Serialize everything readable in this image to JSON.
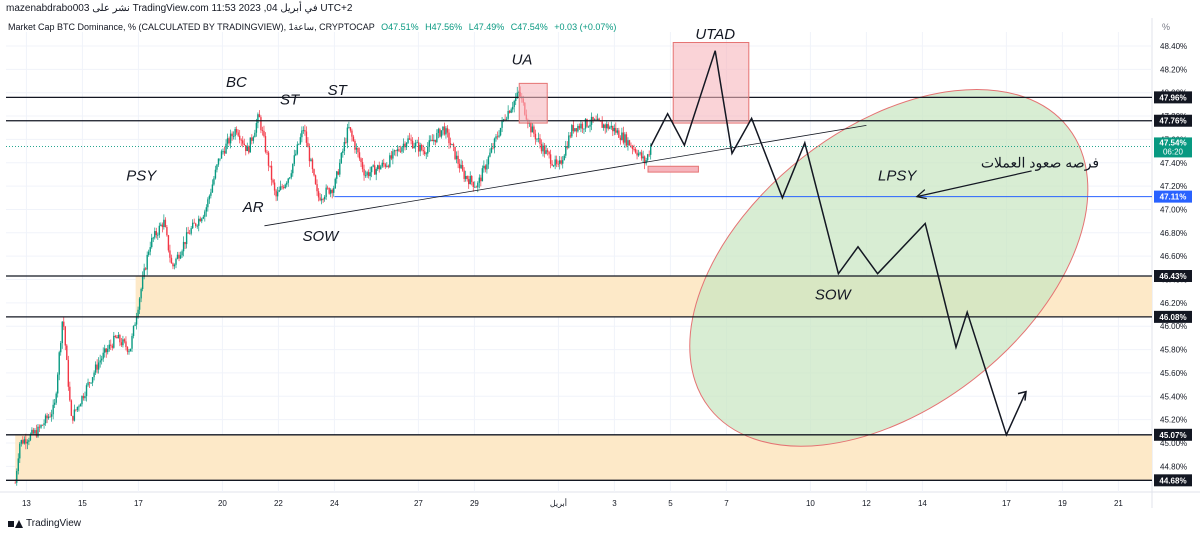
{
  "header": {
    "attribution": "mazenabdrabo003 نشر على TradingView.com في أبريل 04, 2023 11:53 UTC+2",
    "symbol_title": "Market Cap BTC Dominance, % (CALCULATED BY TRADINGVIEW), 1ساعة, CRYPTOCAP",
    "ohlc": {
      "open": "O47.51%",
      "high": "H47.56%",
      "low": "L47.49%",
      "close": "C47.54%",
      "change": "+0.03 (+0.07%)"
    },
    "unit": "%"
  },
  "footer": {
    "brand": "TradingView"
  },
  "colors": {
    "up": "#089981",
    "down": "#f23645",
    "zone": "#fde9c8",
    "ellipse_fill": "#c8e6c0",
    "ellipse_stroke": "#e57373",
    "box_fill": "#f6b5bd",
    "blue_line": "#2962ff"
  },
  "chart_data": {
    "type": "candlestick",
    "ylim": [
      44.6,
      48.5
    ],
    "y_ticks": [
      "48.40%",
      "48.20%",
      "48.00%",
      "47.80%",
      "47.60%",
      "47.40%",
      "47.20%",
      "47.00%",
      "46.80%",
      "46.60%",
      "46.40%",
      "46.20%",
      "46.00%",
      "45.80%",
      "45.60%",
      "45.40%",
      "45.20%",
      "45.00%",
      "44.80%"
    ],
    "x_ticks": [
      {
        "label": "13",
        "t": 0.4
      },
      {
        "label": "15",
        "t": 2.4
      },
      {
        "label": "17",
        "t": 4.4
      },
      {
        "label": "20",
        "t": 7.4
      },
      {
        "label": "22",
        "t": 9.4
      },
      {
        "label": "24",
        "t": 11.4
      },
      {
        "label": "27",
        "t": 14.4
      },
      {
        "label": "29",
        "t": 16.4
      },
      {
        "label": "أبريل",
        "t": 19.4
      },
      {
        "label": "3",
        "t": 21.4
      },
      {
        "label": "5",
        "t": 23.4
      },
      {
        "label": "7",
        "t": 25.4
      },
      {
        "label": "10",
        "t": 28.4
      },
      {
        "label": "12",
        "t": 30.4
      },
      {
        "label": "14",
        "t": 32.4
      },
      {
        "label": "17",
        "t": 35.4
      },
      {
        "label": "19",
        "t": 37.4
      },
      {
        "label": "21",
        "t": 39.4
      }
    ],
    "price_anchors": [
      [
        0.0,
        44.66
      ],
      [
        0.15,
        45.0
      ],
      [
        0.8,
        45.1
      ],
      [
        1.4,
        45.3
      ],
      [
        1.7,
        46.1
      ],
      [
        2.0,
        45.2
      ],
      [
        2.4,
        45.4
      ],
      [
        3.0,
        45.7
      ],
      [
        3.6,
        45.9
      ],
      [
        4.1,
        45.8
      ],
      [
        4.4,
        46.2
      ],
      [
        4.8,
        46.7
      ],
      [
        5.3,
        46.9
      ],
      [
        5.6,
        46.5
      ],
      [
        6.2,
        46.8
      ],
      [
        6.8,
        47.0
      ],
      [
        7.3,
        47.45
      ],
      [
        7.9,
        47.7
      ],
      [
        8.3,
        47.5
      ],
      [
        8.7,
        47.8
      ],
      [
        9.3,
        47.1
      ],
      [
        9.8,
        47.3
      ],
      [
        10.3,
        47.7
      ],
      [
        10.8,
        47.1
      ],
      [
        11.4,
        47.2
      ],
      [
        11.9,
        47.7
      ],
      [
        12.5,
        47.3
      ],
      [
        13.3,
        47.4
      ],
      [
        14.0,
        47.6
      ],
      [
        14.6,
        47.5
      ],
      [
        15.3,
        47.7
      ],
      [
        16.0,
        47.3
      ],
      [
        16.5,
        47.2
      ],
      [
        17.0,
        47.5
      ],
      [
        17.5,
        47.8
      ],
      [
        18.0,
        48.0
      ],
      [
        18.4,
        47.7
      ],
      [
        18.9,
        47.5
      ],
      [
        19.4,
        47.35
      ],
      [
        19.9,
        47.7
      ],
      [
        20.6,
        47.75
      ],
      [
        21.3,
        47.7
      ],
      [
        21.8,
        47.6
      ],
      [
        22.2,
        47.5
      ],
      [
        22.5,
        47.4
      ],
      [
        22.7,
        47.54
      ]
    ],
    "levels": [
      {
        "value": 47.96,
        "label": "47.96%",
        "style": "black"
      },
      {
        "value": 47.76,
        "label": "47.76%",
        "style": "black"
      },
      {
        "value": 47.54,
        "label": "47.54%",
        "style": "current",
        "countdown": "06:20"
      },
      {
        "value": 47.11,
        "label": "47.11%",
        "style": "blue"
      },
      {
        "value": 46.43,
        "label": "46.43%",
        "style": "black"
      },
      {
        "value": 46.08,
        "label": "46.08%",
        "style": "black"
      },
      {
        "value": 45.07,
        "label": "45.07%",
        "style": "black"
      },
      {
        "value": 44.68,
        "label": "44.68%",
        "style": "black"
      }
    ],
    "zones": [
      {
        "from": 46.08,
        "to": 46.43
      },
      {
        "from": 44.68,
        "to": 45.07
      }
    ],
    "trendline": [
      [
        8.9,
        46.86
      ],
      [
        30.4,
        47.72
      ]
    ],
    "projection_path": [
      [
        22.7,
        47.54
      ],
      [
        23.3,
        47.82
      ],
      [
        23.9,
        47.55
      ],
      [
        25.0,
        48.36
      ],
      [
        25.6,
        47.48
      ],
      [
        26.3,
        47.78
      ],
      [
        27.4,
        47.1
      ],
      [
        28.2,
        47.57
      ],
      [
        29.4,
        46.45
      ],
      [
        30.1,
        46.68
      ],
      [
        30.8,
        46.45
      ],
      [
        32.5,
        46.88
      ],
      [
        33.6,
        45.82
      ],
      [
        34.0,
        46.12
      ],
      [
        35.4,
        45.07
      ],
      [
        36.1,
        45.44
      ]
    ],
    "boxes": [
      {
        "t0": 18.0,
        "t1": 19.0,
        "p0": 47.74,
        "p1": 48.08
      },
      {
        "t0": 23.5,
        "t1": 26.2,
        "p0": 47.74,
        "p1": 48.43
      }
    ],
    "small_box": {
      "t0": 22.6,
      "t1": 24.4,
      "p0": 47.32,
      "p1": 47.37
    },
    "ellipse": {
      "t": 31.2,
      "p": 46.5,
      "rx_days": 5.0,
      "ry_price": 1.95,
      "tilt_deg": 52
    },
    "annotations": [
      {
        "text": "PSY",
        "t": 4.5,
        "p": 47.25
      },
      {
        "text": "BC",
        "t": 7.9,
        "p": 48.05
      },
      {
        "text": "ST",
        "t": 9.8,
        "p": 47.9
      },
      {
        "text": "ST",
        "t": 11.5,
        "p": 47.98
      },
      {
        "text": "AR",
        "t": 8.5,
        "p": 46.98
      },
      {
        "text": "SOW",
        "t": 10.9,
        "p": 46.73
      },
      {
        "text": "UA",
        "t": 18.1,
        "p": 48.24
      },
      {
        "text": "UTAD",
        "t": 25.0,
        "p": 48.46
      },
      {
        "text": "LPSY",
        "t": 31.5,
        "p": 47.25
      },
      {
        "text": "SOW",
        "t": 29.2,
        "p": 46.23
      }
    ],
    "arabic_note": {
      "text": "فرصه صعود العملات",
      "t": 36.6,
      "p": 47.36
    },
    "note_arrow": [
      [
        36.3,
        47.33
      ],
      [
        32.2,
        47.11
      ]
    ]
  }
}
